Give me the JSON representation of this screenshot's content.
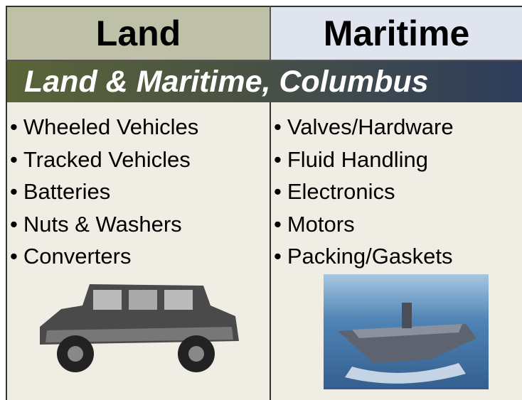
{
  "table": {
    "headers": [
      "Land",
      "Maritime"
    ],
    "banner": "Land & Maritime, Columbus",
    "columns": [
      [
        "Wheeled Vehicles",
        "Tracked Vehicles",
        "Batteries",
        "Nuts & Washers",
        "Converters"
      ],
      [
        "Valves/Hardware",
        "Fluid Handling",
        "Electronics",
        "Motors",
        "Packing/Gaskets"
      ]
    ]
  }
}
